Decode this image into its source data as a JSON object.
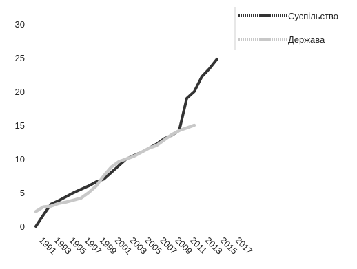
{
  "chart_data": {
    "type": "line",
    "x": [
      "1991",
      "1993",
      "1995",
      "1997",
      "1999",
      "2001",
      "2003",
      "2005",
      "2007",
      "2009",
      "2011",
      "2013",
      "2015",
      "2017"
    ],
    "ylim": [
      0,
      30
    ],
    "yticks": [
      0,
      5,
      10,
      15,
      20,
      25,
      30
    ],
    "grid": false,
    "legend_position": "top-right",
    "series": [
      {
        "name": "Суспільство",
        "color": "#333333",
        "points": [
          [
            1991,
            0
          ],
          [
            1992,
            1.7
          ],
          [
            1993,
            3.3
          ],
          [
            1994,
            3.8
          ],
          [
            1995,
            4.4
          ],
          [
            1996,
            5.0
          ],
          [
            1997,
            5.5
          ],
          [
            1998,
            6.0
          ],
          [
            1999,
            6.6
          ],
          [
            2000,
            7.0
          ],
          [
            2001,
            8.0
          ],
          [
            2002,
            9.0
          ],
          [
            2003,
            10.0
          ],
          [
            2004,
            10.5
          ],
          [
            2005,
            11.0
          ],
          [
            2006,
            11.6
          ],
          [
            2007,
            12.2
          ],
          [
            2008,
            13.0
          ],
          [
            2009,
            13.5
          ],
          [
            2010,
            14.2
          ],
          [
            2011,
            19.0
          ],
          [
            2012,
            20.0
          ],
          [
            2013,
            22.2
          ],
          [
            2014,
            23.4
          ],
          [
            2015,
            24.8
          ]
        ]
      },
      {
        "name": "Держава",
        "color": "#c8c8c8",
        "points": [
          [
            1991,
            2.2
          ],
          [
            1992,
            2.9
          ],
          [
            1993,
            3.0
          ],
          [
            1994,
            3.4
          ],
          [
            1995,
            3.6
          ],
          [
            1996,
            3.9
          ],
          [
            1997,
            4.2
          ],
          [
            1998,
            5.0
          ],
          [
            1999,
            6.0
          ],
          [
            2000,
            7.5
          ],
          [
            2001,
            8.8
          ],
          [
            2002,
            9.6
          ],
          [
            2003,
            10.0
          ],
          [
            2004,
            10.4
          ],
          [
            2005,
            11.0
          ],
          [
            2006,
            11.6
          ],
          [
            2007,
            12.0
          ],
          [
            2008,
            12.8
          ],
          [
            2009,
            13.6
          ],
          [
            2010,
            14.2
          ],
          [
            2011,
            14.6
          ],
          [
            2012,
            15.0
          ]
        ]
      }
    ]
  }
}
